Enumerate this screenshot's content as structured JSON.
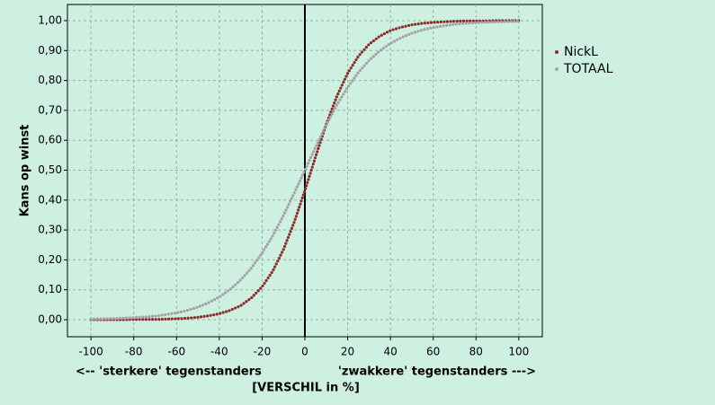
{
  "chart_data": {
    "type": "line",
    "y_label": "Kans op winst",
    "x_label": "[VERSCHIL in %]",
    "annotations": [
      "<-- 'sterkere' tegenstanders",
      "'zwakkere' tegenstanders --->"
    ],
    "x": [
      -100,
      -95,
      -90,
      -85,
      -80,
      -75,
      -70,
      -65,
      -60,
      -55,
      -50,
      -45,
      -40,
      -35,
      -30,
      -25,
      -20,
      -15,
      -10,
      -5,
      0,
      5,
      10,
      15,
      20,
      25,
      30,
      35,
      40,
      45,
      50,
      55,
      60,
      65,
      70,
      75,
      80,
      85,
      90,
      95,
      100
    ],
    "series": [
      {
        "name": "NickL",
        "color": "#8b2b2b",
        "values": [
          0.0,
          0.0,
          0.0,
          0.0,
          0.001,
          0.001,
          0.001,
          0.002,
          0.003,
          0.005,
          0.008,
          0.013,
          0.02,
          0.031,
          0.047,
          0.073,
          0.11,
          0.163,
          0.235,
          0.326,
          0.432,
          0.545,
          0.654,
          0.748,
          0.824,
          0.881,
          0.921,
          0.948,
          0.967,
          0.978,
          0.986,
          0.991,
          0.994,
          0.996,
          0.998,
          0.999,
          0.999,
          0.999,
          1.0,
          1.0,
          1.0
        ]
      },
      {
        "name": "TOTAAL",
        "color": "#a3a3a3",
        "values": [
          0.002,
          0.003,
          0.004,
          0.005,
          0.007,
          0.009,
          0.012,
          0.017,
          0.023,
          0.031,
          0.042,
          0.057,
          0.076,
          0.101,
          0.133,
          0.173,
          0.223,
          0.281,
          0.349,
          0.423,
          0.5,
          0.577,
          0.651,
          0.719,
          0.777,
          0.827,
          0.867,
          0.899,
          0.924,
          0.943,
          0.958,
          0.969,
          0.977,
          0.983,
          0.988,
          0.991,
          0.993,
          0.995,
          0.996,
          0.997,
          0.998
        ]
      }
    ],
    "xlim": [
      -111,
      111
    ],
    "ylim": [
      -0.057,
      1.054
    ],
    "xticks": [
      -100,
      -80,
      -60,
      -40,
      -20,
      0,
      20,
      40,
      60,
      80,
      100
    ],
    "yticks": [
      {
        "value": 0,
        "label": "0,00"
      },
      {
        "value": 0.1,
        "label": "0,10"
      },
      {
        "value": 0.2,
        "label": "0,20"
      },
      {
        "value": 0.3,
        "label": "0,30"
      },
      {
        "value": 0.4,
        "label": "0,40"
      },
      {
        "value": 0.5,
        "label": "0,50"
      },
      {
        "value": 0.6,
        "label": "0,60"
      },
      {
        "value": 0.7,
        "label": "0,70"
      },
      {
        "value": 0.8,
        "label": "0,80"
      },
      {
        "value": 0.9,
        "label": "0,90"
      },
      {
        "value": 1,
        "label": "1,00"
      }
    ],
    "reference_line_x": 0,
    "grid": true,
    "legend": "right"
  }
}
